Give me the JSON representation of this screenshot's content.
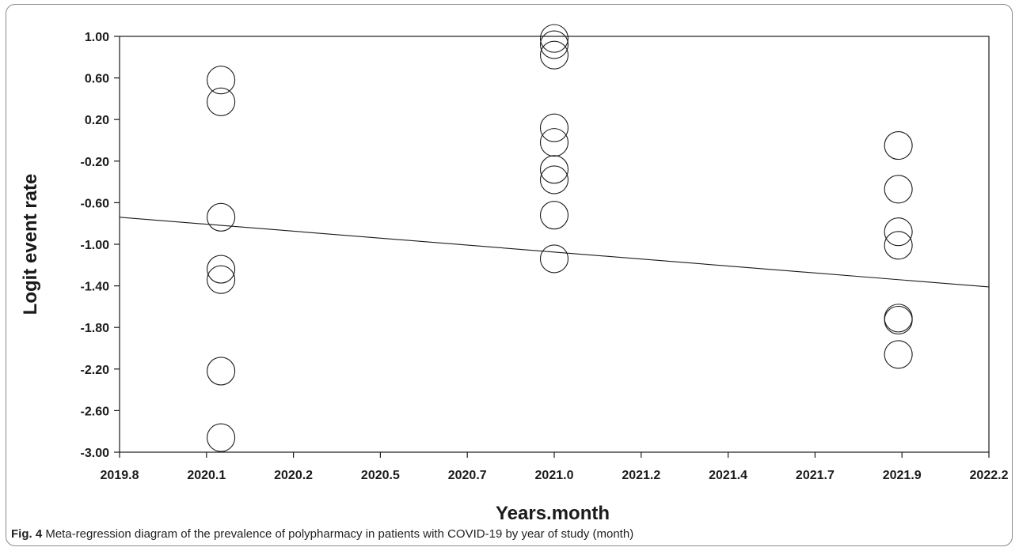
{
  "chart_data": {
    "type": "scatter",
    "xlabel": "Years.month",
    "ylabel": "Logit event rate",
    "xlim": [
      2019.8,
      2022.2
    ],
    "ylim": [
      -3.0,
      1.0
    ],
    "x_ticks": [
      "2019.8",
      "2020.1",
      "2020.2",
      "2020.5",
      "2020.7",
      "2021.0",
      "2021.2",
      "2021.4",
      "2021.7",
      "2021.9",
      "2022.2"
    ],
    "x_tick_values": [
      2019.8,
      2020.04,
      2020.28,
      2020.52,
      2020.76,
      2021.0,
      2021.24,
      2021.48,
      2021.72,
      2021.96,
      2022.2
    ],
    "y_ticks": [
      "1.00",
      "0.60",
      "0.20",
      "-0.20",
      "-0.60",
      "-1.00",
      "-1.40",
      "-1.80",
      "-2.20",
      "-2.60",
      "-3.00"
    ],
    "y_tick_values": [
      1.0,
      0.6,
      0.2,
      -0.2,
      -0.6,
      -1.0,
      -1.4,
      -1.8,
      -2.2,
      -2.6,
      -3.0
    ],
    "points": [
      {
        "x": 2020.08,
        "y": 0.58
      },
      {
        "x": 2020.08,
        "y": 0.37
      },
      {
        "x": 2020.08,
        "y": -0.74
      },
      {
        "x": 2020.08,
        "y": -1.24
      },
      {
        "x": 2020.08,
        "y": -1.34
      },
      {
        "x": 2020.08,
        "y": -2.22
      },
      {
        "x": 2020.08,
        "y": -2.86
      },
      {
        "x": 2021.0,
        "y": 0.98
      },
      {
        "x": 2021.0,
        "y": 0.92
      },
      {
        "x": 2021.0,
        "y": 0.82
      },
      {
        "x": 2021.0,
        "y": 0.12
      },
      {
        "x": 2021.0,
        "y": -0.02
      },
      {
        "x": 2021.0,
        "y": -0.28
      },
      {
        "x": 2021.0,
        "y": -0.38
      },
      {
        "x": 2021.0,
        "y": -0.72
      },
      {
        "x": 2021.0,
        "y": -1.14
      },
      {
        "x": 2021.95,
        "y": -0.05
      },
      {
        "x": 2021.95,
        "y": -0.47
      },
      {
        "x": 2021.95,
        "y": -0.88
      },
      {
        "x": 2021.95,
        "y": -1.01
      },
      {
        "x": 2021.95,
        "y": -1.71
      },
      {
        "x": 2021.95,
        "y": -1.73
      },
      {
        "x": 2021.95,
        "y": -2.06
      }
    ],
    "regression_line": {
      "x": [
        2019.8,
        2022.2
      ],
      "y": [
        -0.74,
        -1.41
      ]
    },
    "grid": false,
    "legend": false
  },
  "caption": {
    "label": "Fig. 4",
    "text": "Meta-regression diagram of the prevalence of polypharmacy in patients with COVID-19 by year of study (month)"
  },
  "colors": {
    "axis": "#1a1a1a",
    "marker": "#1a1a1a",
    "line": "#1a1a1a",
    "border": "#8a8a8a"
  }
}
